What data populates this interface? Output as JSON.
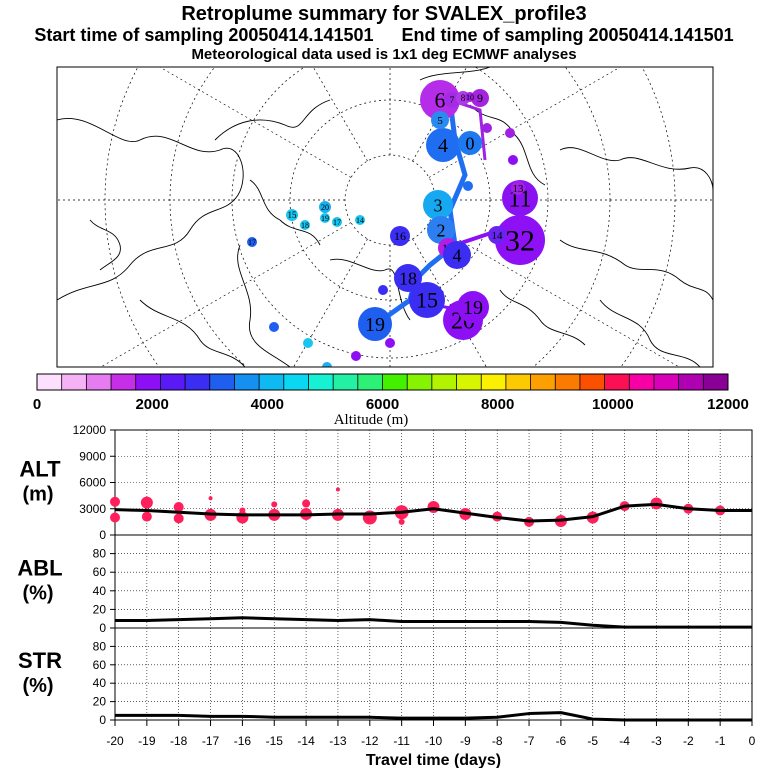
{
  "title": "Retroplume summary for SVALEX_profile3",
  "sampling": {
    "start": "Start time of sampling 20050414.141501",
    "end": "End time of sampling 20050414.141501"
  },
  "met_note": "Meteorological data used is 1x1 deg ECMWF analyses",
  "colors": {
    "alt_marker": "#ff1f5a",
    "line": "#000000",
    "colorbar": [
      "#fde0fe",
      "#f5b3f5",
      "#e57cf0",
      "#c52fe8",
      "#8d10f5",
      "#5a1af6",
      "#3b2df2",
      "#1f5ff0",
      "#1690f0",
      "#0fb9f2",
      "#0ad8f3",
      "#17f1d3",
      "#23f0a3",
      "#2df076",
      "#43f000",
      "#86f400",
      "#b2f400",
      "#d7f400",
      "#fbf000",
      "#fcca00",
      "#fba000",
      "#fb7b00",
      "#fb5000",
      "#fc0f54",
      "#f700a5",
      "#d900b9",
      "#b000b4",
      "#8a0096"
    ]
  },
  "map": {
    "colorbar_ticks": [
      "0",
      "2000",
      "4000",
      "6000",
      "8000",
      "10000",
      "12000"
    ],
    "colorbar_label": "Altitude (m)",
    "plume_labels": [
      {
        "t": "6",
        "c": "#b52de8"
      },
      {
        "t": "7",
        "c": "#a32be6"
      },
      {
        "t": "8",
        "c": "#b03ae8"
      },
      {
        "t": "9",
        "c": "#a524e0"
      },
      {
        "t": "10",
        "c": "#a020e4"
      },
      {
        "t": "4",
        "c": "#1f6ef2"
      },
      {
        "t": "0",
        "c": "#1f7af2"
      },
      {
        "t": "5",
        "c": "#2a8af0"
      },
      {
        "t": "3",
        "c": "#17a8f2"
      },
      {
        "t": "2",
        "c": "#2d7ef0"
      },
      {
        "t": "11",
        "c": "#8a12f0"
      },
      {
        "t": "32",
        "c": "#8e10f5"
      },
      {
        "t": "14",
        "c": "#6a24f0"
      },
      {
        "t": "13",
        "c": "#b21ee6"
      },
      {
        "t": "4",
        "c": "#3b2df2"
      },
      {
        "t": "16",
        "c": "#3b2df2"
      },
      {
        "t": "18",
        "c": "#3b2df2"
      },
      {
        "t": "15",
        "c": "#3b2df2"
      },
      {
        "t": "19",
        "c": "#1f5ff0"
      },
      {
        "t": "20",
        "c": "#8d10f5"
      },
      {
        "t": "19",
        "c": "#8d10f5"
      },
      {
        "t": "20",
        "c": "#17b0f0"
      },
      {
        "t": "19",
        "c": "#17c5f0"
      },
      {
        "t": "15",
        "c": "#17c5f0"
      },
      {
        "t": "14",
        "c": "#17c5f0"
      },
      {
        "t": "18",
        "c": "#17c5f0"
      },
      {
        "t": "17",
        "c": "#17c5f0"
      },
      {
        "t": "17",
        "c": "#1f5ff0"
      },
      {
        "t": "13",
        "c": "#a320e4"
      }
    ]
  },
  "chart_data": {
    "type": "line",
    "x": [
      -20,
      -19,
      -18,
      -17,
      -16,
      -15,
      -14,
      -13,
      -12,
      -11,
      -10,
      -9,
      -8,
      -7,
      -6,
      -5,
      -4,
      -3,
      -2,
      -1,
      0
    ],
    "xlim": [
      -20,
      0
    ],
    "x_ticks": [
      "-20",
      "-19",
      "-18",
      "-17",
      "-16",
      "-15",
      "-14",
      "-13",
      "-12",
      "-11",
      "-10",
      "-9",
      "-8",
      "-7",
      "-6",
      "-5",
      "-4",
      "-3",
      "-2",
      "-1",
      "0"
    ],
    "xlabel": "Travel time (days)",
    "panels": [
      {
        "label": "ALT",
        "unit": "(m)",
        "ylim": [
          0,
          12000
        ],
        "y_ticks": [
          "0",
          "3000",
          "6000",
          "9000",
          "12000"
        ],
        "line": [
          2900,
          2800,
          2600,
          2400,
          2300,
          2300,
          2300,
          2400,
          2400,
          2600,
          3000,
          2500,
          2000,
          1600,
          1700,
          2100,
          3300,
          3500,
          3000,
          2800,
          2800
        ],
        "scatter": [
          {
            "x": -20,
            "y": 3800,
            "s": 5
          },
          {
            "x": -20,
            "y": 2000,
            "s": 5
          },
          {
            "x": -19,
            "y": 3700,
            "s": 6
          },
          {
            "x": -19,
            "y": 2100,
            "s": 5
          },
          {
            "x": -18,
            "y": 3200,
            "s": 5
          },
          {
            "x": -18,
            "y": 1900,
            "s": 5
          },
          {
            "x": -17,
            "y": 2300,
            "s": 6
          },
          {
            "x": -17,
            "y": 4200,
            "s": 2
          },
          {
            "x": -16,
            "y": 2000,
            "s": 6
          },
          {
            "x": -16,
            "y": 2800,
            "s": 3
          },
          {
            "x": -15,
            "y": 2300,
            "s": 6
          },
          {
            "x": -15,
            "y": 3500,
            "s": 3
          },
          {
            "x": -14,
            "y": 2400,
            "s": 6
          },
          {
            "x": -14,
            "y": 3600,
            "s": 4
          },
          {
            "x": -13,
            "y": 2300,
            "s": 6
          },
          {
            "x": -13,
            "y": 5200,
            "s": 2
          },
          {
            "x": -12,
            "y": 2000,
            "s": 7
          },
          {
            "x": -11,
            "y": 2600,
            "s": 7
          },
          {
            "x": -11,
            "y": 1500,
            "s": 3
          },
          {
            "x": -10,
            "y": 3200,
            "s": 6
          },
          {
            "x": -9,
            "y": 2400,
            "s": 6
          },
          {
            "x": -8,
            "y": 2100,
            "s": 5
          },
          {
            "x": -7,
            "y": 1500,
            "s": 5
          },
          {
            "x": -6,
            "y": 1600,
            "s": 6
          },
          {
            "x": -5,
            "y": 2000,
            "s": 6
          },
          {
            "x": -4,
            "y": 3300,
            "s": 5
          },
          {
            "x": -3,
            "y": 3600,
            "s": 6
          },
          {
            "x": -2,
            "y": 3000,
            "s": 5
          },
          {
            "x": -1,
            "y": 2800,
            "s": 5
          }
        ]
      },
      {
        "label": "ABL",
        "unit": "(%)",
        "ylim": [
          0,
          100
        ],
        "y_ticks": [
          "0",
          "20",
          "40",
          "60",
          "80"
        ],
        "line": [
          8,
          8,
          9,
          10,
          11,
          10,
          9,
          8,
          9,
          7,
          7,
          7,
          7,
          7,
          6,
          3,
          1,
          1,
          1,
          1,
          1
        ]
      },
      {
        "label": "STR",
        "unit": "(%)",
        "ylim": [
          0,
          100
        ],
        "y_ticks": [
          "0",
          "20",
          "40",
          "60",
          "80"
        ],
        "line": [
          5,
          5,
          5,
          4,
          4,
          3,
          3,
          3,
          3,
          2,
          2,
          2,
          3,
          7,
          8,
          1,
          0,
          0,
          0,
          0,
          0
        ]
      }
    ]
  }
}
